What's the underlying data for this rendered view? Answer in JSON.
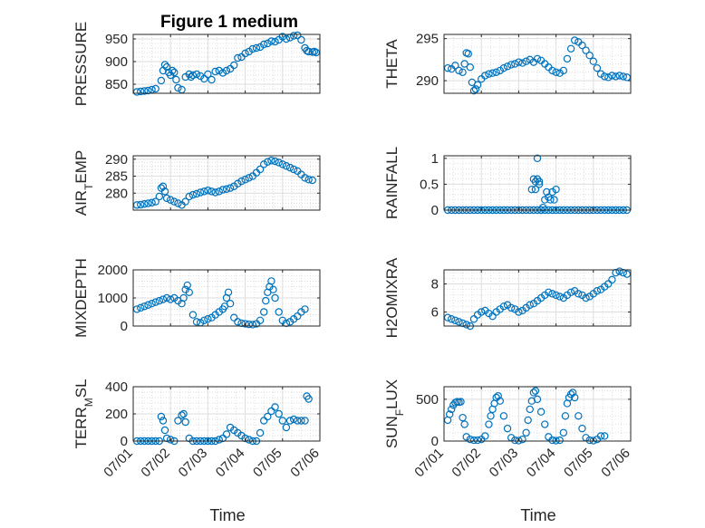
{
  "figure": {
    "title": "Figure 1 medium",
    "xlabel": "Time",
    "x_ticks": [
      "07/01",
      "07/02",
      "07/03",
      "07/04",
      "07/05",
      "07/06"
    ],
    "marker_color": "#0072BD"
  },
  "chart_data": [
    {
      "type": "scatter",
      "name": "PRESSURE",
      "ylabel": {
        "main": "PRESSURE",
        "sub": ""
      },
      "ylim": [
        830,
        960
      ],
      "yticks": [
        850,
        900,
        950
      ],
      "x": [
        0.1,
        0.2,
        0.3,
        0.4,
        0.5,
        0.6,
        0.75,
        0.8,
        0.85,
        0.9,
        0.95,
        1.0,
        1.05,
        1.1,
        1.15,
        1.2,
        1.3,
        1.4,
        1.5,
        1.55,
        1.6,
        1.7,
        1.8,
        1.9,
        2.0,
        2.1,
        2.2,
        2.3,
        2.4,
        2.5,
        2.6,
        2.7,
        2.8,
        2.9,
        3.0,
        3.1,
        3.2,
        3.3,
        3.4,
        3.5,
        3.6,
        3.7,
        3.8,
        3.9,
        4.0,
        4.1,
        4.2,
        4.3,
        4.4,
        4.5,
        4.6,
        4.65,
        4.7,
        4.8,
        4.85,
        4.9
      ],
      "y": [
        833,
        834,
        835,
        836,
        838,
        840,
        858,
        880,
        893,
        888,
        876,
        870,
        880,
        876,
        860,
        842,
        838,
        866,
        872,
        866,
        870,
        872,
        868,
        862,
        872,
        860,
        878,
        880,
        875,
        880,
        884,
        892,
        908,
        910,
        918,
        922,
        928,
        930,
        932,
        938,
        940,
        945,
        944,
        948,
        955,
        950,
        953,
        957,
        958,
        948,
        930,
        924,
        922,
        921,
        922,
        920
      ]
    },
    {
      "type": "scatter",
      "name": "THETA",
      "ylabel": {
        "main": "THETA",
        "sub": ""
      },
      "ylim": [
        288.5,
        295.5
      ],
      "yticks": [
        290,
        295
      ],
      "x": [
        0.1,
        0.2,
        0.3,
        0.4,
        0.5,
        0.55,
        0.6,
        0.65,
        0.7,
        0.75,
        0.8,
        0.85,
        0.9,
        1.0,
        1.1,
        1.2,
        1.3,
        1.4,
        1.5,
        1.6,
        1.7,
        1.8,
        1.9,
        2.0,
        2.1,
        2.2,
        2.3,
        2.4,
        2.5,
        2.6,
        2.7,
        2.8,
        2.9,
        3.0,
        3.1,
        3.2,
        3.3,
        3.4,
        3.5,
        3.6,
        3.7,
        3.8,
        3.9,
        4.0,
        4.1,
        4.2,
        4.3,
        4.4,
        4.5,
        4.6,
        4.7,
        4.8,
        4.9
      ],
      "y": [
        291.5,
        291.4,
        291.8,
        291.2,
        291.0,
        292.0,
        293.3,
        293.2,
        291.6,
        289.8,
        288.8,
        289.0,
        289.5,
        290.2,
        290.6,
        290.8,
        290.9,
        291.0,
        291.2,
        291.5,
        291.7,
        291.9,
        292.0,
        292.2,
        292.1,
        292.3,
        292.5,
        292.2,
        292.6,
        292.4,
        292.0,
        291.6,
        291.2,
        291.0,
        290.9,
        291.2,
        292.6,
        293.8,
        294.8,
        294.6,
        294.2,
        293.6,
        293.0,
        292.3,
        291.5,
        290.8,
        290.5,
        290.4,
        290.6,
        290.5,
        290.6,
        290.5,
        290.4
      ]
    },
    {
      "type": "scatter",
      "name": "AIR_TEMP",
      "ylabel": {
        "main": "AIR",
        "sub": "T",
        "tail": "EMP"
      },
      "ylim": [
        275,
        291
      ],
      "yticks": [
        280,
        285,
        290
      ],
      "x": [
        0.1,
        0.2,
        0.3,
        0.4,
        0.5,
        0.6,
        0.7,
        0.75,
        0.8,
        0.85,
        0.9,
        1.0,
        1.1,
        1.2,
        1.3,
        1.4,
        1.5,
        1.6,
        1.7,
        1.8,
        1.9,
        2.0,
        2.1,
        2.2,
        2.3,
        2.4,
        2.5,
        2.6,
        2.7,
        2.8,
        2.9,
        3.0,
        3.1,
        3.2,
        3.3,
        3.4,
        3.5,
        3.6,
        3.7,
        3.8,
        3.9,
        4.0,
        4.1,
        4.2,
        4.3,
        4.4,
        4.5,
        4.6,
        4.7,
        4.8
      ],
      "y": [
        276.5,
        276.6,
        276.8,
        277.0,
        277.2,
        277.5,
        279.0,
        281.5,
        282.0,
        280.5,
        278.5,
        278.0,
        277.5,
        277.0,
        276.5,
        277.5,
        279.0,
        279.5,
        279.8,
        280.2,
        280.5,
        280.8,
        280.5,
        280.2,
        280.5,
        281.0,
        281.2,
        281.5,
        282.0,
        282.8,
        283.5,
        284.0,
        284.5,
        285.0,
        286.0,
        287.0,
        288.5,
        289.2,
        289.6,
        289.4,
        289.0,
        288.5,
        288.0,
        287.5,
        287.0,
        286.5,
        285.5,
        284.5,
        284.0,
        283.8
      ]
    },
    {
      "type": "scatter",
      "name": "RAINFALL",
      "ylabel": {
        "main": "RAINFALL",
        "sub": ""
      },
      "ylim": [
        0,
        1.05
      ],
      "yticks": [
        0,
        0.5,
        1
      ],
      "x": [
        0.1,
        0.2,
        0.3,
        0.4,
        0.5,
        0.6,
        0.7,
        0.8,
        0.9,
        1.0,
        1.1,
        1.2,
        1.3,
        1.4,
        1.5,
        1.6,
        1.7,
        1.8,
        1.9,
        2.0,
        2.1,
        2.2,
        2.3,
        2.4,
        2.5,
        2.6,
        2.7,
        2.8,
        2.9,
        3.0,
        3.1,
        3.2,
        3.3,
        3.4,
        3.5,
        3.6,
        3.7,
        3.8,
        3.9,
        4.0,
        4.1,
        4.2,
        4.3,
        4.4,
        4.5,
        4.6,
        4.7,
        4.8,
        4.9,
        2.35,
        2.4,
        2.45,
        2.5,
        2.55,
        2.6,
        2.65,
        2.7,
        2.75,
        2.8,
        2.85,
        2.9,
        2.95,
        3.0,
        2.5,
        2.45,
        2.55
      ],
      "y": [
        0,
        0,
        0,
        0,
        0,
        0,
        0,
        0,
        0,
        0,
        0,
        0,
        0,
        0,
        0,
        0,
        0,
        0,
        0,
        0,
        0,
        0,
        0,
        0,
        0,
        0,
        0,
        0,
        0,
        0,
        0,
        0,
        0,
        0,
        0,
        0,
        0,
        0,
        0,
        0,
        0,
        0,
        0,
        0,
        0,
        0,
        0,
        0,
        0,
        0.4,
        0.6,
        0.4,
        0.6,
        0.55,
        0,
        0.05,
        0.2,
        0.35,
        0.25,
        0.2,
        0.35,
        0.2,
        0.4,
        1.0,
        0.55,
        0.5
      ]
    },
    {
      "type": "scatter",
      "name": "MIXDEPTH",
      "ylabel": {
        "main": "MIXDEPTH",
        "sub": ""
      },
      "ylim": [
        0,
        2000
      ],
      "yticks": [
        0,
        1000,
        2000
      ],
      "x": [
        0.1,
        0.2,
        0.3,
        0.4,
        0.5,
        0.6,
        0.7,
        0.8,
        0.9,
        1.0,
        1.1,
        1.2,
        1.3,
        1.35,
        1.4,
        1.45,
        1.5,
        1.6,
        1.7,
        1.8,
        1.9,
        2.0,
        2.1,
        2.2,
        2.3,
        2.4,
        2.45,
        2.5,
        2.55,
        2.6,
        2.7,
        2.8,
        2.9,
        3.0,
        3.1,
        3.2,
        3.3,
        3.4,
        3.5,
        3.55,
        3.6,
        3.65,
        3.7,
        3.75,
        3.8,
        3.9,
        4.0,
        4.1,
        4.2,
        4.3,
        4.4,
        4.5,
        4.6
      ],
      "y": [
        600,
        650,
        700,
        750,
        800,
        850,
        900,
        950,
        1000,
        950,
        1000,
        900,
        800,
        1000,
        1300,
        1450,
        1200,
        400,
        150,
        120,
        200,
        250,
        300,
        400,
        500,
        600,
        700,
        1000,
        1200,
        800,
        300,
        150,
        100,
        80,
        60,
        50,
        80,
        200,
        500,
        900,
        1200,
        1400,
        1600,
        1300,
        1000,
        500,
        200,
        100,
        150,
        250,
        350,
        500,
        600
      ]
    },
    {
      "type": "scatter",
      "name": "H2OMIXRA",
      "ylabel": {
        "main": "H2OMIXRA",
        "sub": ""
      },
      "ylim": [
        5,
        9
      ],
      "yticks": [
        6,
        8
      ],
      "x": [
        0.1,
        0.2,
        0.3,
        0.4,
        0.5,
        0.6,
        0.7,
        0.8,
        0.9,
        1.0,
        1.1,
        1.2,
        1.3,
        1.4,
        1.5,
        1.6,
        1.7,
        1.8,
        1.9,
        2.0,
        2.1,
        2.2,
        2.3,
        2.4,
        2.5,
        2.6,
        2.7,
        2.8,
        2.9,
        3.0,
        3.1,
        3.2,
        3.3,
        3.4,
        3.5,
        3.6,
        3.7,
        3.8,
        3.9,
        4.0,
        4.1,
        4.2,
        4.3,
        4.4,
        4.5,
        4.6,
        4.7,
        4.8,
        4.9
      ],
      "y": [
        5.6,
        5.5,
        5.4,
        5.3,
        5.2,
        5.1,
        5.0,
        5.5,
        5.8,
        6.0,
        6.1,
        5.9,
        5.7,
        6.0,
        6.2,
        6.4,
        6.5,
        6.3,
        6.2,
        6.0,
        6.1,
        6.3,
        6.5,
        6.6,
        6.8,
        7.0,
        7.2,
        7.4,
        7.3,
        7.2,
        7.1,
        7.0,
        7.2,
        7.4,
        7.5,
        7.3,
        7.2,
        7.0,
        7.1,
        7.3,
        7.5,
        7.6,
        7.8,
        8.0,
        8.3,
        8.8,
        8.9,
        8.8,
        8.7
      ]
    },
    {
      "type": "scatter",
      "name": "TERR_MSL",
      "ylabel": {
        "main": "TERR",
        "sub": "M",
        "tail": "SL"
      },
      "ylim": [
        0,
        400
      ],
      "yticks": [
        0,
        200,
        400
      ],
      "x": [
        0.1,
        0.2,
        0.3,
        0.4,
        0.5,
        0.6,
        0.7,
        0.75,
        0.8,
        0.85,
        0.9,
        1.0,
        1.1,
        1.2,
        1.3,
        1.35,
        1.4,
        1.5,
        1.6,
        1.7,
        1.8,
        1.9,
        2.0,
        2.1,
        2.2,
        2.3,
        2.4,
        2.5,
        2.6,
        2.7,
        2.8,
        2.9,
        3.0,
        3.1,
        3.2,
        3.3,
        3.4,
        3.5,
        3.6,
        3.7,
        3.8,
        3.9,
        4.0,
        4.1,
        4.2,
        4.3,
        4.4,
        4.5,
        4.6,
        4.65,
        4.7
      ],
      "y": [
        0,
        0,
        0,
        0,
        0,
        0,
        0,
        180,
        150,
        80,
        20,
        10,
        0,
        150,
        190,
        200,
        140,
        20,
        0,
        0,
        0,
        0,
        0,
        0,
        0,
        10,
        20,
        50,
        100,
        80,
        60,
        40,
        20,
        10,
        0,
        0,
        60,
        150,
        180,
        220,
        250,
        200,
        150,
        100,
        150,
        160,
        150,
        150,
        150,
        330,
        310
      ]
    },
    {
      "type": "scatter",
      "name": "SUN_FLUX",
      "ylabel": {
        "main": "SUN",
        "sub": "F",
        "tail": "LUX"
      },
      "ylim": [
        0,
        650
      ],
      "yticks": [
        0,
        500
      ],
      "x": [
        0.1,
        0.15,
        0.2,
        0.25,
        0.3,
        0.35,
        0.4,
        0.45,
        0.5,
        0.55,
        0.6,
        0.7,
        0.8,
        0.9,
        1.0,
        1.1,
        1.2,
        1.25,
        1.3,
        1.35,
        1.4,
        1.45,
        1.5,
        1.6,
        1.7,
        1.8,
        1.9,
        2.0,
        2.1,
        2.2,
        2.25,
        2.3,
        2.35,
        2.4,
        2.45,
        2.5,
        2.6,
        2.7,
        2.8,
        2.9,
        3.0,
        3.1,
        3.2,
        3.25,
        3.3,
        3.35,
        3.4,
        3.45,
        3.5,
        3.6,
        3.7,
        3.8,
        3.9,
        4.0,
        4.1,
        4.2,
        4.3
      ],
      "y": [
        250,
        320,
        380,
        430,
        460,
        470,
        465,
        470,
        280,
        200,
        50,
        20,
        10,
        10,
        20,
        60,
        200,
        300,
        380,
        450,
        520,
        540,
        480,
        300,
        150,
        40,
        10,
        5,
        20,
        100,
        250,
        380,
        480,
        580,
        600,
        500,
        350,
        200,
        50,
        10,
        5,
        10,
        100,
        300,
        450,
        520,
        560,
        580,
        520,
        300,
        150,
        40,
        10,
        5,
        20,
        60,
        60
      ]
    }
  ]
}
